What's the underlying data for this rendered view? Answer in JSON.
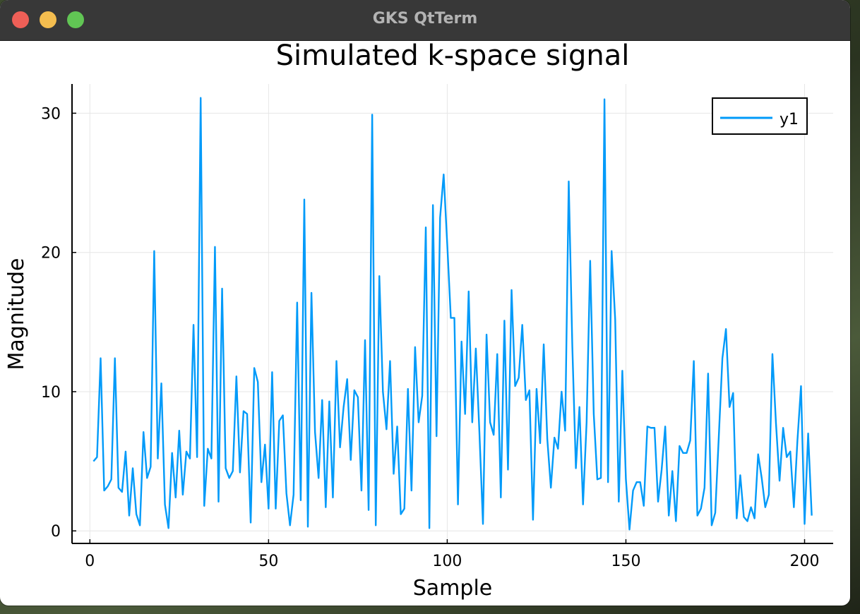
{
  "window": {
    "title": "GKS QtTerm"
  },
  "chart_data": {
    "type": "line",
    "title": "Simulated k-space signal",
    "xlabel": "Sample",
    "ylabel": "Magnitude",
    "xlim": [
      -5,
      208
    ],
    "ylim": [
      -0.9,
      32.1
    ],
    "xticks": [
      0,
      50,
      100,
      150,
      200
    ],
    "yticks": [
      0,
      10,
      20,
      30
    ],
    "grid": true,
    "legend": "top-right",
    "series": [
      {
        "name": "y1",
        "color": "#009af9",
        "x": [
          1,
          2,
          3,
          4,
          5,
          6,
          7,
          8,
          9,
          10,
          11,
          12,
          13,
          14,
          15,
          16,
          17,
          18,
          19,
          20,
          21,
          22,
          23,
          24,
          25,
          26,
          27,
          28,
          29,
          30,
          31,
          32,
          33,
          34,
          35,
          36,
          37,
          38,
          39,
          40,
          41,
          42,
          43,
          44,
          45,
          46,
          47,
          48,
          49,
          50,
          51,
          52,
          53,
          54,
          55,
          56,
          57,
          58,
          59,
          60,
          61,
          62,
          63,
          64,
          65,
          66,
          67,
          68,
          69,
          70,
          71,
          72,
          73,
          74,
          75,
          76,
          77,
          78,
          79,
          80,
          81,
          82,
          83,
          84,
          85,
          86,
          87,
          88,
          89,
          90,
          91,
          92,
          93,
          94,
          95,
          96,
          97,
          98,
          99,
          100,
          101,
          102,
          103,
          104,
          105,
          106,
          107,
          108,
          109,
          110,
          111,
          112,
          113,
          114,
          115,
          116,
          117,
          118,
          119,
          120,
          121,
          122,
          123,
          124,
          125,
          126,
          127,
          128,
          129,
          130,
          131,
          132,
          133,
          134,
          135,
          136,
          137,
          138,
          139,
          140,
          141,
          142,
          143,
          144,
          145,
          146,
          147,
          148,
          149,
          150,
          151,
          152,
          153,
          154,
          155,
          156,
          157,
          158,
          159,
          160,
          161,
          162,
          163,
          164,
          165,
          166,
          167,
          168,
          169,
          170,
          171,
          172,
          173,
          174,
          175,
          176,
          177,
          178,
          179,
          180,
          181,
          182,
          183,
          184,
          185,
          186,
          187,
          188,
          189,
          190,
          191,
          192,
          193,
          194,
          195,
          196,
          197,
          198,
          199,
          200,
          201,
          202
        ],
        "y": [
          5.0,
          5.3,
          12.4,
          2.9,
          3.2,
          3.7,
          12.4,
          3.1,
          2.8,
          5.7,
          1.1,
          4.5,
          1.2,
          0.4,
          7.1,
          3.8,
          4.6,
          20.1,
          5.2,
          10.6,
          1.9,
          0.2,
          5.6,
          2.4,
          7.2,
          2.6,
          5.7,
          5.2,
          14.8,
          5.3,
          31.1,
          1.8,
          5.9,
          5.2,
          20.4,
          2.1,
          17.4,
          4.5,
          3.8,
          4.3,
          11.1,
          4.2,
          8.6,
          8.4,
          0.6,
          11.7,
          10.7,
          3.5,
          6.2,
          1.6,
          11.4,
          1.6,
          7.9,
          8.3,
          2.7,
          0.4,
          2.6,
          16.4,
          2.2,
          23.8,
          0.3,
          17.1,
          7.1,
          3.8,
          9.4,
          1.7,
          9.3,
          2.4,
          12.2,
          6.0,
          8.9,
          10.9,
          5.1,
          10.1,
          9.6,
          2.9,
          13.7,
          1.5,
          29.9,
          0.4,
          18.3,
          10.0,
          7.3,
          12.2,
          4.1,
          7.5,
          1.2,
          1.6,
          10.2,
          2.9,
          13.2,
          7.8,
          9.7,
          21.8,
          0.2,
          23.4,
          6.8,
          22.5,
          25.6,
          20.6,
          15.3,
          15.3,
          1.9,
          13.6,
          8.4,
          17.2,
          7.8,
          13.1,
          7.1,
          0.5,
          14.1,
          7.8,
          6.9,
          12.7,
          2.4,
          15.1,
          4.4,
          17.3,
          10.4,
          11.0,
          14.8,
          9.4,
          10.1,
          0.8,
          10.2,
          6.3,
          13.4,
          6.6,
          3.1,
          6.7,
          5.9,
          10.0,
          7.2,
          25.1,
          13.3,
          4.5,
          8.9,
          1.9,
          7.8,
          19.4,
          8.4,
          3.7,
          3.8,
          31.0,
          3.5,
          20.1,
          15.2,
          2.1,
          11.5,
          3.7,
          0.1,
          2.9,
          3.5,
          3.5,
          1.8,
          7.5,
          7.4,
          7.4,
          2.1,
          4.4,
          7.5,
          1.1,
          4.3,
          0.7,
          6.1,
          5.6,
          5.6,
          6.5,
          12.2,
          1.1,
          1.6,
          3.1,
          11.3,
          0.4,
          1.3,
          6.8,
          12.4,
          14.5,
          8.9,
          9.9,
          0.9,
          4.0,
          1.0,
          0.7,
          1.7,
          0.9,
          5.5,
          3.8,
          1.7,
          2.6,
          12.7,
          7.7,
          3.6,
          7.4,
          5.3,
          5.7,
          1.7,
          6.5,
          10.4,
          0.5,
          7.0,
          1.1
        ]
      }
    ]
  }
}
